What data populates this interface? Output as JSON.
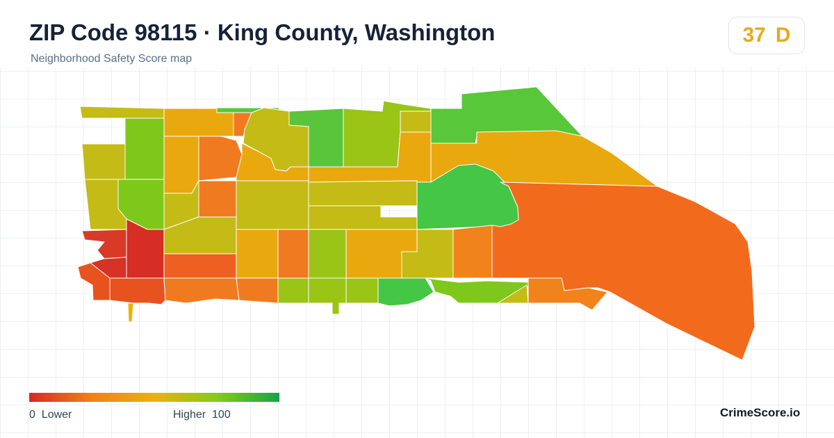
{
  "header": {
    "title": "ZIP Code 98115 · King County, Washington",
    "subtitle": "Neighborhood Safety Score map"
  },
  "score_badge": {
    "score": "37",
    "grade": "D",
    "color": "#e9a81c"
  },
  "legend": {
    "low_value": "0",
    "low_label": "Lower",
    "high_label": "Higher",
    "high_value": "100",
    "color_stops": [
      "#dc2626",
      "#f0811a",
      "#eab308",
      "#84cc16",
      "#16a34a"
    ]
  },
  "brand": {
    "name": "CrimeScore.io"
  },
  "colors": {
    "title": "#152238",
    "subtitle": "#5a6f86",
    "grid": "#eceff3"
  }
}
